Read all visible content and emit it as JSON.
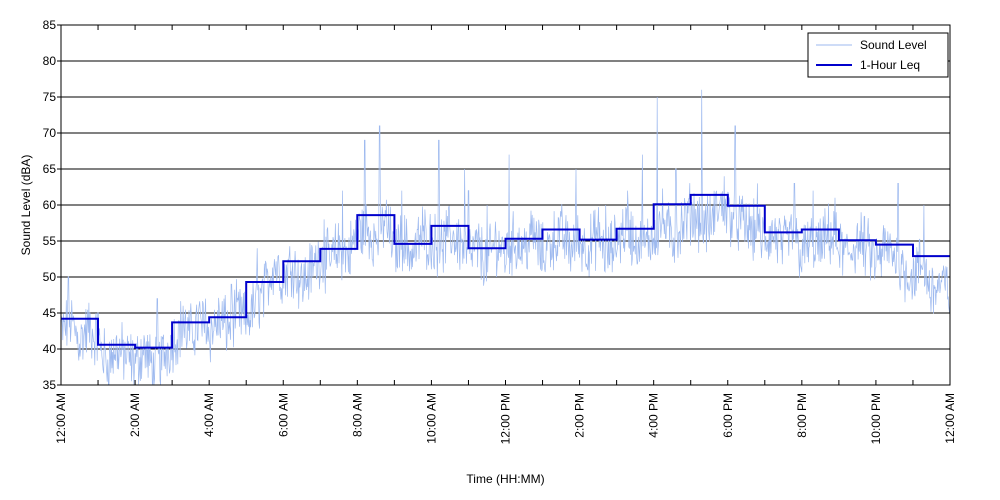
{
  "chart_data": {
    "type": "line",
    "title": "",
    "xlabel": "Time (HH:MM)",
    "ylabel": "Sound Level (dBA)",
    "xlim": [
      0,
      24
    ],
    "ylim": [
      35,
      85
    ],
    "y_ticks": [
      35,
      40,
      45,
      50,
      55,
      60,
      65,
      70,
      75,
      80,
      85
    ],
    "x_tick_labels": [
      "12:00 AM",
      "2:00 AM",
      "4:00 AM",
      "6:00 AM",
      "8:00 AM",
      "10:00 AM",
      "12:00 PM",
      "2:00 PM",
      "4:00 PM",
      "6:00 PM",
      "8:00 PM",
      "10:00 PM",
      "12:00 AM"
    ],
    "grid": "horizontal",
    "legend_position": "top-right",
    "series": [
      {
        "name": "Sound Level",
        "style": "thin noisy line",
        "color": "#9db9ef",
        "x": [
          0.0,
          0.25,
          0.5,
          0.75,
          1.0,
          1.25,
          1.5,
          1.75,
          2.0,
          2.25,
          2.5,
          2.75,
          3.0,
          3.25,
          3.5,
          3.75,
          4.0,
          4.25,
          4.5,
          4.75,
          5.0,
          5.25,
          5.5,
          5.75,
          6.0,
          6.25,
          6.5,
          6.75,
          7.0,
          7.25,
          7.5,
          7.75,
          8.0,
          8.25,
          8.5,
          8.75,
          9.0,
          9.25,
          9.5,
          9.75,
          10.0,
          10.25,
          10.5,
          10.75,
          11.0,
          11.25,
          11.5,
          11.75,
          12.0,
          12.25,
          12.5,
          12.75,
          13.0,
          13.25,
          13.5,
          13.75,
          14.0,
          14.25,
          14.5,
          14.75,
          15.0,
          15.25,
          15.5,
          15.75,
          16.0,
          16.25,
          16.5,
          16.75,
          17.0,
          17.25,
          17.5,
          17.75,
          18.0,
          18.25,
          18.5,
          18.75,
          19.0,
          19.25,
          19.5,
          19.75,
          20.0,
          20.25,
          20.5,
          20.75,
          21.0,
          21.25,
          21.5,
          21.75,
          22.0,
          22.25,
          22.5,
          22.75,
          23.0,
          23.25,
          23.5,
          23.75,
          24.0
        ],
        "values": [
          42,
          44,
          41,
          43,
          41,
          38,
          40,
          39,
          38,
          40,
          37,
          39,
          41,
          43,
          42,
          44,
          42,
          44,
          43,
          45,
          44,
          46,
          48,
          52,
          50,
          52,
          49,
          51,
          53,
          52,
          54,
          53,
          56,
          57,
          55,
          58,
          54,
          55,
          53,
          56,
          55,
          54,
          56,
          55,
          53,
          54,
          52,
          55,
          53,
          55,
          54,
          56,
          53,
          55,
          56,
          54,
          55,
          54,
          56,
          53,
          55,
          57,
          55,
          54,
          56,
          58,
          55,
          57,
          59,
          58,
          57,
          60,
          59,
          58,
          57,
          56,
          55,
          56,
          54,
          56,
          53,
          55,
          54,
          56,
          54,
          53,
          55,
          54,
          52,
          54,
          53,
          51,
          50,
          52,
          48,
          49,
          48
        ],
        "peaks": [
          {
            "x": 0.2,
            "y": 50
          },
          {
            "x": 1.0,
            "y": 45
          },
          {
            "x": 2.6,
            "y": 47
          },
          {
            "x": 3.3,
            "y": 46
          },
          {
            "x": 3.9,
            "y": 47
          },
          {
            "x": 4.4,
            "y": 47
          },
          {
            "x": 4.6,
            "y": 49
          },
          {
            "x": 5.3,
            "y": 54
          },
          {
            "x": 7.1,
            "y": 58
          },
          {
            "x": 7.6,
            "y": 62
          },
          {
            "x": 8.2,
            "y": 69
          },
          {
            "x": 8.6,
            "y": 71
          },
          {
            "x": 9.2,
            "y": 62
          },
          {
            "x": 10.2,
            "y": 69
          },
          {
            "x": 11.0,
            "y": 62
          },
          {
            "x": 10.9,
            "y": 65
          },
          {
            "x": 12.1,
            "y": 67
          },
          {
            "x": 11.5,
            "y": 60
          },
          {
            "x": 13.9,
            "y": 65
          },
          {
            "x": 14.7,
            "y": 60
          },
          {
            "x": 15.3,
            "y": 62
          },
          {
            "x": 15.7,
            "y": 67
          },
          {
            "x": 16.1,
            "y": 75
          },
          {
            "x": 16.6,
            "y": 65
          },
          {
            "x": 17.3,
            "y": 76
          },
          {
            "x": 17.9,
            "y": 64
          },
          {
            "x": 18.2,
            "y": 71
          },
          {
            "x": 18.8,
            "y": 63
          },
          {
            "x": 19.8,
            "y": 63
          },
          {
            "x": 20.3,
            "y": 62
          },
          {
            "x": 20.9,
            "y": 61
          },
          {
            "x": 21.6,
            "y": 59
          },
          {
            "x": 22.6,
            "y": 63
          },
          {
            "x": 23.3,
            "y": 60
          }
        ]
      },
      {
        "name": "1-Hour Leq",
        "style": "step",
        "color": "#0000cc",
        "x": [
          0,
          1,
          2,
          3,
          4,
          5,
          6,
          7,
          8,
          9,
          10,
          11,
          12,
          13,
          14,
          15,
          16,
          17,
          18,
          19,
          20,
          21,
          22,
          23
        ],
        "values": [
          44.2,
          40.6,
          40.2,
          43.7,
          44.4,
          49.3,
          52.2,
          53.9,
          58.6,
          54.6,
          57.1,
          54.0,
          55.3,
          56.6,
          55.2,
          56.7,
          60.1,
          61.4,
          59.9,
          56.2,
          56.6,
          55.1,
          54.5,
          52.9
        ]
      }
    ]
  }
}
